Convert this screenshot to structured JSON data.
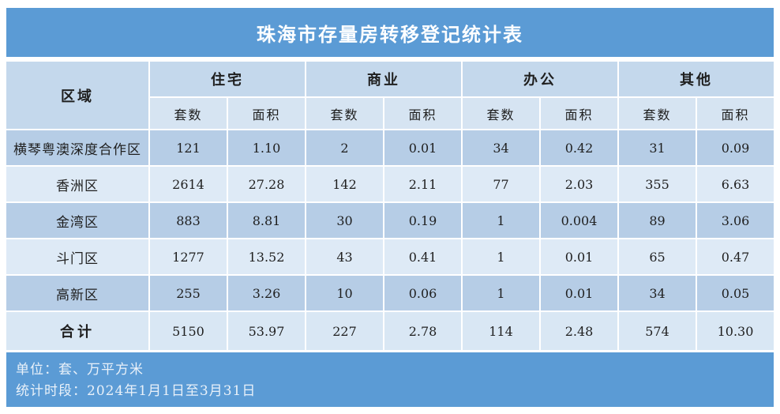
{
  "title": "珠海市存量房转移登记统计表",
  "table": {
    "region_header": "区域",
    "group_labels": [
      "住宅",
      "商业",
      "办公",
      "其他"
    ],
    "sub_headers": {
      "units": "套数",
      "area": "面积"
    },
    "rows": [
      {
        "region": "横琴粤澳深度合作区",
        "values": [
          "121",
          "1.10",
          "2",
          "0.01",
          "34",
          "0.42",
          "31",
          "0.09"
        ]
      },
      {
        "region": "香洲区",
        "values": [
          "2614",
          "27.28",
          "142",
          "2.11",
          "77",
          "2.03",
          "355",
          "6.63"
        ]
      },
      {
        "region": "金湾区",
        "values": [
          "883",
          "8.81",
          "30",
          "0.19",
          "1",
          "0.004",
          "89",
          "3.06"
        ]
      },
      {
        "region": "斗门区",
        "values": [
          "1277",
          "13.52",
          "43",
          "0.41",
          "1",
          "0.01",
          "65",
          "0.47"
        ]
      },
      {
        "region": "高新区",
        "values": [
          "255",
          "3.26",
          "10",
          "0.06",
          "1",
          "0.01",
          "34",
          "0.05"
        ]
      }
    ],
    "total": {
      "region": "合计",
      "values": [
        "5150",
        "53.97",
        "227",
        "2.78",
        "114",
        "2.48",
        "574",
        "10.30"
      ]
    }
  },
  "footer": {
    "unit_line": "单位：套、万平方米",
    "period_line": "统计时段：2024年1月1日至3月31日"
  },
  "colors": {
    "bar_blue": "#5B9BD5",
    "header_blue": "#C4D8EC",
    "subheader_blue": "#D6E4F2",
    "row_dark_blue": "#B6CDE6",
    "row_light_blue": "#DEEAF6",
    "total_row_blue": "#D9E7F4",
    "grid_line": "#FFFFFF",
    "text_dark": "#1F1F1F",
    "text_light": "#E9F1F9"
  },
  "chart_data": {
    "type": "table",
    "title": "珠海市存量房转移登记统计表",
    "column_groups": [
      "住宅",
      "商业",
      "办公",
      "其他"
    ],
    "columns": [
      "区域",
      "住宅套数",
      "住宅面积",
      "商业套数",
      "商业面积",
      "办公套数",
      "办公面积",
      "其他套数",
      "其他面积"
    ],
    "rows": [
      [
        "横琴粤澳深度合作区",
        121,
        1.1,
        2,
        0.01,
        34,
        0.42,
        31,
        0.09
      ],
      [
        "香洲区",
        2614,
        27.28,
        142,
        2.11,
        77,
        2.03,
        355,
        6.63
      ],
      [
        "金湾区",
        883,
        8.81,
        30,
        0.19,
        1,
        0.004,
        89,
        3.06
      ],
      [
        "斗门区",
        1277,
        13.52,
        43,
        0.41,
        1,
        0.01,
        65,
        0.47
      ],
      [
        "高新区",
        255,
        3.26,
        10,
        0.06,
        1,
        0.01,
        34,
        0.05
      ],
      [
        "合计",
        5150,
        53.97,
        227,
        2.78,
        114,
        2.48,
        574,
        10.3
      ]
    ],
    "units_note": "单位：套、万平方米",
    "period": "2024年1月1日至3月31日"
  }
}
